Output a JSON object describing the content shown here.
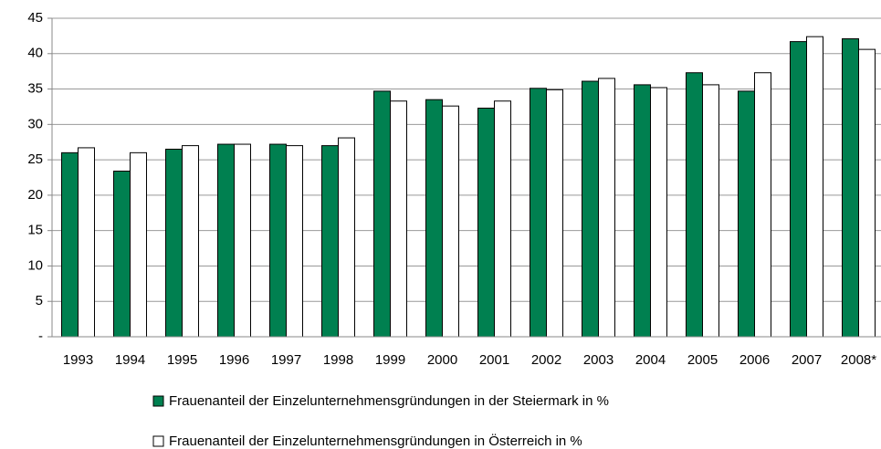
{
  "chart_data": {
    "type": "bar",
    "categories": [
      "1993",
      "1994",
      "1995",
      "1996",
      "1997",
      "1998",
      "1999",
      "2000",
      "2001",
      "2002",
      "2003",
      "2004",
      "2005",
      "2006",
      "2007",
      "2008*"
    ],
    "series": [
      {
        "name": "Frauenanteil der Einzelunternehmensgründungen in der Steiermark in %",
        "color": "#008050",
        "values": [
          26.0,
          23.4,
          26.5,
          27.2,
          27.2,
          27.0,
          34.7,
          33.5,
          32.3,
          35.1,
          36.1,
          35.6,
          37.3,
          34.7,
          41.7,
          42.1
        ]
      },
      {
        "name": "Frauenanteil der Einzelunternehmensgründungen in Österreich in %",
        "color": "#ffffff",
        "values": [
          26.7,
          26.0,
          27.0,
          27.2,
          27.0,
          28.1,
          33.3,
          32.6,
          33.3,
          34.9,
          36.5,
          35.2,
          35.6,
          37.3,
          42.4,
          40.6
        ]
      }
    ],
    "ylim": [
      0,
      45
    ],
    "yticks": [
      {
        "value": 0,
        "label": "-"
      },
      5,
      10,
      15,
      20,
      25,
      30,
      35,
      40,
      45
    ],
    "grid": true
  }
}
